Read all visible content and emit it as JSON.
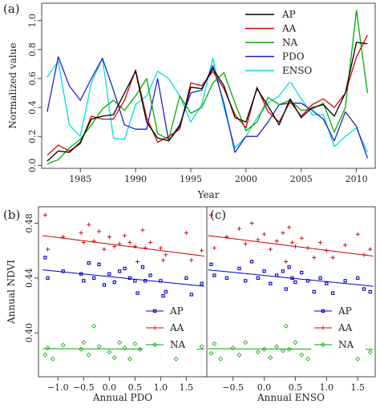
{
  "chart_data": [
    {
      "type": "line",
      "panel_label": "(a)",
      "xlabel": "Year",
      "ylabel": "Normalized value",
      "xlim": [
        1981.5,
        2011.7
      ],
      "ylim": [
        -0.02,
        1.12
      ],
      "xticks": [
        1985,
        1990,
        1995,
        2000,
        2005,
        2010
      ],
      "xtick_labels": [
        "1985",
        "1990",
        "1995",
        "2000",
        "2005",
        "2010"
      ],
      "yticks": [
        0.0,
        0.2,
        0.4,
        0.6,
        0.8,
        1.0
      ],
      "ytick_labels": [
        "0.0",
        "0.2",
        "0.4",
        "0.6",
        "0.8",
        "1.0"
      ],
      "grid": false,
      "legend_position": "top-right",
      "x": [
        1982,
        1983,
        1984,
        1985,
        1986,
        1987,
        1988,
        1989,
        1990,
        1991,
        1992,
        1993,
        1994,
        1995,
        1996,
        1997,
        1998,
        1999,
        2000,
        2001,
        2002,
        2003,
        2004,
        2005,
        2006,
        2007,
        2008,
        2009,
        2010,
        2011
      ],
      "series": [
        {
          "name": "AP",
          "color": "#000000",
          "values": [
            0.03,
            0.1,
            0.09,
            0.16,
            0.32,
            0.34,
            0.35,
            0.5,
            0.65,
            0.3,
            0.19,
            0.17,
            0.27,
            0.54,
            0.53,
            0.67,
            0.55,
            0.33,
            0.3,
            0.53,
            0.41,
            0.28,
            0.46,
            0.33,
            0.4,
            0.42,
            0.34,
            0.5,
            0.85,
            0.84
          ]
        },
        {
          "name": "AA",
          "color": "#dd0000",
          "values": [
            0.07,
            0.14,
            0.1,
            0.15,
            0.34,
            0.32,
            0.32,
            0.45,
            0.66,
            0.33,
            0.16,
            0.2,
            0.25,
            0.57,
            0.55,
            0.65,
            0.53,
            0.35,
            0.26,
            0.54,
            0.37,
            0.3,
            0.44,
            0.34,
            0.42,
            0.46,
            0.4,
            0.5,
            0.75,
            0.9
          ]
        },
        {
          "name": "NA",
          "color": "#00aa00",
          "values": [
            0.01,
            0.04,
            0.12,
            0.18,
            0.28,
            0.39,
            0.45,
            0.38,
            0.48,
            0.6,
            0.22,
            0.18,
            0.48,
            0.36,
            0.4,
            0.57,
            0.64,
            0.43,
            0.24,
            0.3,
            0.47,
            0.42,
            0.45,
            0.38,
            0.39,
            0.43,
            0.23,
            0.4,
            1.07,
            0.5
          ]
        },
        {
          "name": "PDO",
          "color": "#2020cc",
          "values": [
            0.37,
            0.75,
            0.55,
            0.45,
            0.6,
            0.74,
            0.52,
            0.28,
            0.25,
            0.25,
            0.6,
            0.17,
            0.28,
            0.5,
            0.52,
            0.69,
            0.43,
            0.09,
            0.2,
            0.2,
            0.3,
            0.42,
            0.43,
            0.43,
            0.38,
            0.32,
            0.17,
            0.37,
            0.27,
            0.05
          ]
        },
        {
          "name": "ENSO",
          "color": "#00dddd",
          "values": [
            0.61,
            0.72,
            0.28,
            0.2,
            0.57,
            0.74,
            0.19,
            0.18,
            0.42,
            0.48,
            0.65,
            0.6,
            0.48,
            0.3,
            0.42,
            0.74,
            0.4,
            0.12,
            0.2,
            0.33,
            0.43,
            0.48,
            0.58,
            0.46,
            0.35,
            0.35,
            0.13,
            0.2,
            0.26,
            0.09
          ]
        }
      ]
    },
    {
      "type": "scatter",
      "panel_label": "(b)",
      "xlabel": "Annual PDO",
      "ylabel": "Annual NDVI",
      "xlim": [
        -1.38,
        1.9
      ],
      "ylim": [
        0.368,
        0.492
      ],
      "xticks": [
        -1.0,
        -0.5,
        0.0,
        0.5,
        1.0,
        1.5
      ],
      "xtick_labels": [
        "−1.0",
        "−0.5",
        "0.0",
        "0.5",
        "1.0",
        "1.5"
      ],
      "yticks": [
        0.4,
        0.44,
        0.48
      ],
      "ytick_labels": [
        "0.40",
        "0.44",
        "0.48"
      ],
      "grid": false,
      "legend_position": "bottom-right",
      "series": [
        {
          "name": "AP",
          "color": "#0000cc",
          "marker": "square",
          "fit": [
            [
              -1.3,
              0.446
            ],
            [
              1.85,
              0.434
            ]
          ],
          "points": [
            [
              -1.25,
              0.455
            ],
            [
              -1.2,
              0.44
            ],
            [
              -0.9,
              0.445
            ],
            [
              -0.55,
              0.443
            ],
            [
              -0.5,
              0.438
            ],
            [
              -0.4,
              0.451
            ],
            [
              -0.3,
              0.44
            ],
            [
              -0.2,
              0.45
            ],
            [
              -0.1,
              0.435
            ],
            [
              0.0,
              0.443
            ],
            [
              0.1,
              0.437
            ],
            [
              0.2,
              0.445
            ],
            [
              0.3,
              0.447
            ],
            [
              0.4,
              0.44
            ],
            [
              0.5,
              0.438
            ],
            [
              0.55,
              0.429
            ],
            [
              0.65,
              0.448
            ],
            [
              0.7,
              0.438
            ],
            [
              0.8,
              0.442
            ],
            [
              1.0,
              0.438
            ],
            [
              1.05,
              0.427
            ],
            [
              1.1,
              0.43
            ],
            [
              1.5,
              0.44
            ],
            [
              1.6,
              0.428
            ],
            [
              1.8,
              0.436
            ]
          ]
        },
        {
          "name": "AA",
          "color": "#cc0000",
          "marker": "plus",
          "fit": [
            [
              -1.3,
              0.471
            ],
            [
              1.85,
              0.456
            ]
          ],
          "points": [
            [
              -1.25,
              0.486
            ],
            [
              -1.2,
              0.461
            ],
            [
              -0.9,
              0.47
            ],
            [
              -0.55,
              0.473
            ],
            [
              -0.5,
              0.466
            ],
            [
              -0.4,
              0.479
            ],
            [
              -0.3,
              0.467
            ],
            [
              -0.2,
              0.474
            ],
            [
              -0.1,
              0.461
            ],
            [
              0.0,
              0.47
            ],
            [
              0.1,
              0.463
            ],
            [
              0.2,
              0.465
            ],
            [
              0.3,
              0.471
            ],
            [
              0.4,
              0.466
            ],
            [
              0.5,
              0.463
            ],
            [
              0.55,
              0.452
            ],
            [
              0.65,
              0.475
            ],
            [
              0.7,
              0.462
            ],
            [
              0.8,
              0.466
            ],
            [
              1.0,
              0.462
            ],
            [
              1.05,
              0.453
            ],
            [
              1.1,
              0.457
            ],
            [
              1.5,
              0.473
            ],
            [
              1.6,
              0.453
            ],
            [
              1.8,
              0.46
            ]
          ]
        },
        {
          "name": "NA",
          "color": "#00aa00",
          "marker": "diamond",
          "fit": [
            [
              -1.3,
              0.3885
            ],
            [
              1.85,
              0.388
            ]
          ],
          "points": [
            [
              -1.25,
              0.384
            ],
            [
              -1.2,
              0.389
            ],
            [
              -1.1,
              0.381
            ],
            [
              -0.9,
              0.391
            ],
            [
              -0.55,
              0.388
            ],
            [
              -0.5,
              0.393
            ],
            [
              -0.4,
              0.384
            ],
            [
              -0.3,
              0.405
            ],
            [
              -0.2,
              0.39
            ],
            [
              0.0,
              0.386
            ],
            [
              0.1,
              0.382
            ],
            [
              0.2,
              0.393
            ],
            [
              0.3,
              0.389
            ],
            [
              0.4,
              0.381
            ],
            [
              0.5,
              0.392
            ],
            [
              0.6,
              0.388
            ],
            [
              0.8,
              0.391
            ],
            [
              1.0,
              0.384
            ],
            [
              1.05,
              0.393
            ],
            [
              1.1,
              0.387
            ],
            [
              1.3,
              0.381
            ],
            [
              1.5,
              0.389
            ],
            [
              1.6,
              0.385
            ],
            [
              1.8,
              0.39
            ]
          ]
        }
      ]
    },
    {
      "type": "scatter",
      "panel_label": "(c)",
      "xlabel": "Annual ENSO",
      "ylabel": "",
      "xlim": [
        -0.92,
        1.78
      ],
      "ylim": [
        0.368,
        0.492
      ],
      "xticks": [
        -0.5,
        0.0,
        0.5,
        1.0,
        1.5
      ],
      "xtick_labels": [
        "−0.5",
        "0.0",
        "0.5",
        "1.0",
        "1.5"
      ],
      "grid": false,
      "legend_position": "bottom-right",
      "series": [
        {
          "name": "AP",
          "color": "#0000cc",
          "marker": "square",
          "fit": [
            [
              -0.9,
              0.446
            ],
            [
              1.75,
              0.434
            ]
          ],
          "points": [
            [
              -0.85,
              0.45
            ],
            [
              -0.8,
              0.442
            ],
            [
              -0.6,
              0.44
            ],
            [
              -0.4,
              0.447
            ],
            [
              -0.3,
              0.438
            ],
            [
              -0.2,
              0.452
            ],
            [
              -0.1,
              0.44
            ],
            [
              0.0,
              0.445
            ],
            [
              0.1,
              0.436
            ],
            [
              0.2,
              0.442
            ],
            [
              0.3,
              0.445
            ],
            [
              0.35,
              0.432
            ],
            [
              0.4,
              0.448
            ],
            [
              0.45,
              0.44
            ],
            [
              0.5,
              0.437
            ],
            [
              0.6,
              0.444
            ],
            [
              0.7,
              0.438
            ],
            [
              0.8,
              0.43
            ],
            [
              0.9,
              0.44
            ],
            [
              1.0,
              0.436
            ],
            [
              1.1,
              0.429
            ],
            [
              1.3,
              0.438
            ],
            [
              1.5,
              0.44
            ],
            [
              1.6,
              0.432
            ],
            [
              1.7,
              0.43
            ]
          ]
        },
        {
          "name": "AA",
          "color": "#cc0000",
          "marker": "plus",
          "fit": [
            [
              -0.9,
              0.471
            ],
            [
              1.75,
              0.456
            ]
          ],
          "points": [
            [
              -0.85,
              0.486
            ],
            [
              -0.8,
              0.462
            ],
            [
              -0.6,
              0.47
            ],
            [
              -0.4,
              0.476
            ],
            [
              -0.3,
              0.465
            ],
            [
              -0.2,
              0.48
            ],
            [
              -0.1,
              0.468
            ],
            [
              0.0,
              0.472
            ],
            [
              0.1,
              0.461
            ],
            [
              0.2,
              0.467
            ],
            [
              0.3,
              0.473
            ],
            [
              0.35,
              0.452
            ],
            [
              0.4,
              0.477
            ],
            [
              0.45,
              0.466
            ],
            [
              0.5,
              0.463
            ],
            [
              0.6,
              0.469
            ],
            [
              0.7,
              0.462
            ],
            [
              0.8,
              0.455
            ],
            [
              0.9,
              0.466
            ],
            [
              1.0,
              0.46
            ],
            [
              1.1,
              0.455
            ],
            [
              1.3,
              0.464
            ],
            [
              1.5,
              0.472
            ],
            [
              1.6,
              0.457
            ],
            [
              1.7,
              0.461
            ]
          ]
        },
        {
          "name": "NA",
          "color": "#00aa00",
          "marker": "diamond",
          "fit": [
            [
              -0.9,
              0.3885
            ],
            [
              1.75,
              0.388
            ]
          ],
          "points": [
            [
              -0.85,
              0.385
            ],
            [
              -0.8,
              0.392
            ],
            [
              -0.7,
              0.381
            ],
            [
              -0.5,
              0.389
            ],
            [
              -0.4,
              0.384
            ],
            [
              -0.3,
              0.393
            ],
            [
              -0.1,
              0.386
            ],
            [
              0.0,
              0.388
            ],
            [
              0.1,
              0.382
            ],
            [
              0.2,
              0.39
            ],
            [
              0.3,
              0.387
            ],
            [
              0.35,
              0.405
            ],
            [
              0.4,
              0.388
            ],
            [
              0.5,
              0.393
            ],
            [
              0.6,
              0.384
            ],
            [
              0.7,
              0.381
            ],
            [
              0.8,
              0.39
            ],
            [
              0.9,
              0.386
            ],
            [
              1.0,
              0.392
            ],
            [
              1.1,
              0.384
            ],
            [
              1.3,
              0.389
            ],
            [
              1.5,
              0.381
            ],
            [
              1.6,
              0.391
            ],
            [
              1.7,
              0.386
            ]
          ]
        }
      ]
    }
  ]
}
